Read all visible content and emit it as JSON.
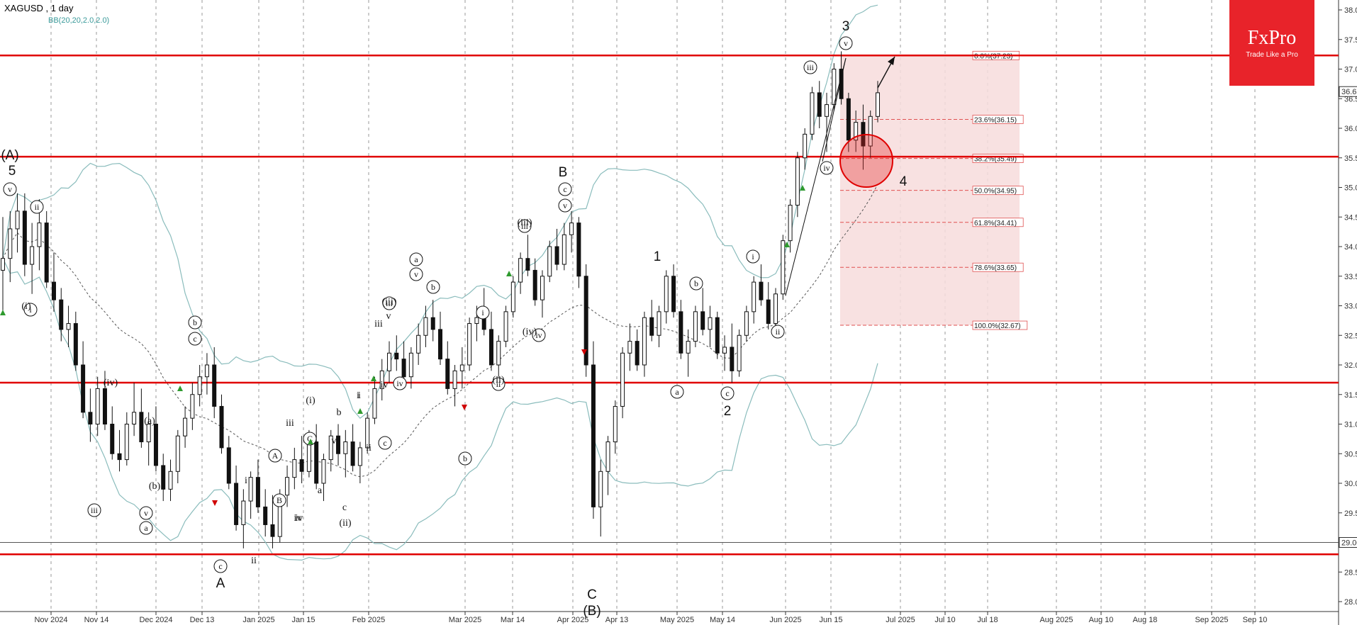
{
  "header": {
    "symbol": "XAGUSD , 1 day",
    "indicator": "BB(20,20,2.0,2.0)"
  },
  "logo": {
    "brand": "FxPro",
    "tagline": "Trade Like a Pro"
  },
  "colors": {
    "resistance": "#e00000",
    "fib_zone": "#f7dcdc",
    "band": "#8abcbc",
    "bull_arrow": "#2e9a2e",
    "bear_arrow": "#d00000"
  },
  "chart_data": {
    "type": "candlestick",
    "title": "XAGUSD , 1 day",
    "ylim": [
      27.8,
      38.1
    ],
    "y_ticks": [
      "38.00",
      "37.50",
      "37.00",
      "36.50",
      "36.00",
      "35.50",
      "35.00",
      "34.50",
      "34.00",
      "33.50",
      "33.00",
      "32.50",
      "32.00",
      "31.50",
      "31.00",
      "30.50",
      "30.00",
      "29.50",
      "29.00",
      "28.50",
      "28.00"
    ],
    "x_ticks": [
      "Nov 2024",
      "Nov 14",
      "Dec 2024",
      "Dec 13",
      "Jan 2025",
      "Jan 15",
      "Feb 2025",
      "Mar 2025",
      "Mar 14",
      "Apr 2025",
      "Apr 13",
      "May 2025",
      "May 14",
      "Jun 2025",
      "Jun 15",
      "Jul 2025",
      "Jul 10",
      "Jul 18",
      "Aug 2025",
      "Aug 10",
      "Aug 18",
      "Sep 2025",
      "Sep 10"
    ],
    "current_price": "36.62",
    "bottom_marker": "29.00",
    "horizontal_levels": [
      37.23,
      35.52,
      31.7,
      28.8
    ],
    "fib_levels": [
      {
        "label": "0.0%(37.23)",
        "price": 37.23
      },
      {
        "label": "23.6%(36.15)",
        "price": 36.15
      },
      {
        "label": "38.2%(35.49)",
        "price": 35.49
      },
      {
        "label": "50.0%(34.95)",
        "price": 34.95
      },
      {
        "label": "61.8%(34.41)",
        "price": 34.41
      },
      {
        "label": "78.6%(33.65)",
        "price": 33.65
      },
      {
        "label": "100.0%(32.67)",
        "price": 32.67
      }
    ],
    "candles": [
      [
        33.6,
        34.5,
        32.9,
        33.8
      ],
      [
        33.8,
        34.6,
        33.4,
        34.3
      ],
      [
        34.3,
        34.9,
        33.9,
        34.6
      ],
      [
        34.6,
        34.9,
        33.5,
        33.7
      ],
      [
        33.7,
        34.4,
        33.2,
        34.0
      ],
      [
        34.0,
        34.8,
        33.6,
        34.4
      ],
      [
        34.4,
        34.6,
        33.3,
        33.4
      ],
      [
        33.4,
        33.9,
        32.9,
        33.1
      ],
      [
        33.1,
        33.3,
        32.4,
        32.6
      ],
      [
        32.6,
        33.0,
        32.3,
        32.7
      ],
      [
        32.7,
        32.9,
        31.9,
        32.0
      ],
      [
        32.0,
        32.4,
        31.1,
        31.2
      ],
      [
        31.2,
        31.6,
        30.7,
        31.0
      ],
      [
        31.0,
        31.8,
        30.8,
        31.6
      ],
      [
        31.6,
        31.9,
        30.9,
        31.0
      ],
      [
        31.0,
        31.3,
        30.4,
        30.5
      ],
      [
        30.5,
        30.9,
        30.2,
        30.4
      ],
      [
        30.4,
        31.2,
        30.3,
        31.0
      ],
      [
        31.0,
        31.7,
        30.8,
        31.2
      ],
      [
        31.2,
        31.6,
        30.6,
        30.7
      ],
      [
        30.7,
        31.2,
        30.3,
        31.0
      ],
      [
        31.0,
        31.3,
        30.2,
        30.3
      ],
      [
        30.3,
        30.5,
        29.7,
        29.9
      ],
      [
        29.9,
        30.4,
        29.7,
        30.2
      ],
      [
        30.2,
        30.9,
        30.0,
        30.8
      ],
      [
        30.8,
        31.3,
        30.6,
        31.1
      ],
      [
        31.1,
        31.7,
        30.9,
        31.5
      ],
      [
        31.5,
        32.0,
        31.3,
        31.8
      ],
      [
        31.8,
        32.2,
        31.5,
        32.0
      ],
      [
        32.0,
        32.3,
        31.1,
        31.3
      ],
      [
        31.3,
        31.5,
        30.5,
        30.6
      ],
      [
        30.6,
        30.8,
        29.9,
        30.0
      ],
      [
        30.0,
        30.3,
        29.2,
        29.3
      ],
      [
        29.3,
        29.9,
        28.9,
        29.7
      ],
      [
        29.7,
        30.2,
        29.4,
        30.1
      ],
      [
        30.1,
        30.4,
        29.5,
        29.6
      ],
      [
        29.6,
        29.9,
        29.1,
        29.3
      ],
      [
        29.3,
        29.8,
        28.9,
        29.1
      ],
      [
        29.1,
        29.9,
        29.0,
        29.8
      ],
      [
        29.8,
        30.3,
        29.6,
        30.1
      ],
      [
        30.1,
        30.6,
        29.9,
        30.4
      ],
      [
        30.4,
        30.8,
        30.0,
        30.2
      ],
      [
        30.2,
        30.9,
        30.1,
        30.7
      ],
      [
        30.7,
        31.0,
        29.9,
        30.0
      ],
      [
        30.0,
        30.5,
        29.7,
        30.4
      ],
      [
        30.4,
        30.9,
        30.2,
        30.8
      ],
      [
        30.8,
        31.0,
        30.3,
        30.5
      ],
      [
        30.5,
        30.9,
        30.1,
        30.7
      ],
      [
        30.7,
        31.0,
        30.2,
        30.3
      ],
      [
        30.3,
        30.7,
        30.0,
        30.6
      ],
      [
        30.6,
        31.2,
        30.5,
        31.1
      ],
      [
        31.1,
        31.8,
        31.0,
        31.6
      ],
      [
        31.6,
        32.1,
        31.4,
        31.9
      ],
      [
        31.9,
        32.4,
        31.7,
        32.2
      ],
      [
        32.2,
        32.5,
        31.9,
        32.1
      ],
      [
        32.1,
        32.4,
        31.7,
        31.8
      ],
      [
        31.8,
        32.3,
        31.6,
        32.2
      ],
      [
        32.2,
        32.7,
        32.0,
        32.5
      ],
      [
        32.5,
        33.0,
        32.3,
        32.8
      ],
      [
        32.8,
        33.1,
        32.4,
        32.6
      ],
      [
        32.6,
        32.9,
        32.0,
        32.1
      ],
      [
        32.1,
        32.4,
        31.5,
        31.6
      ],
      [
        31.6,
        32.0,
        31.3,
        31.9
      ],
      [
        31.9,
        32.3,
        31.6,
        32.0
      ],
      [
        32.0,
        32.8,
        31.9,
        32.7
      ],
      [
        32.7,
        33.0,
        32.4,
        32.8
      ],
      [
        32.8,
        33.3,
        32.5,
        32.6
      ],
      [
        32.6,
        32.9,
        31.9,
        32.0
      ],
      [
        32.0,
        32.5,
        31.8,
        32.4
      ],
      [
        32.4,
        33.0,
        32.3,
        32.9
      ],
      [
        32.9,
        33.5,
        32.8,
        33.4
      ],
      [
        33.4,
        33.9,
        33.2,
        33.8
      ],
      [
        33.8,
        34.2,
        33.5,
        33.6
      ],
      [
        33.6,
        33.8,
        33.0,
        33.1
      ],
      [
        33.1,
        33.6,
        32.8,
        33.5
      ],
      [
        33.5,
        34.1,
        33.4,
        34.0
      ],
      [
        34.0,
        34.3,
        33.6,
        33.7
      ],
      [
        33.7,
        34.4,
        33.6,
        34.2
      ],
      [
        34.2,
        34.6,
        33.9,
        34.4
      ],
      [
        34.4,
        34.5,
        33.3,
        33.5
      ],
      [
        33.5,
        33.7,
        31.8,
        32.0
      ],
      [
        32.0,
        32.4,
        29.4,
        29.6
      ],
      [
        29.6,
        30.4,
        29.1,
        30.2
      ],
      [
        30.2,
        30.8,
        29.8,
        30.7
      ],
      [
        30.7,
        31.4,
        30.5,
        31.3
      ],
      [
        31.3,
        32.3,
        31.1,
        32.2
      ],
      [
        32.2,
        32.7,
        31.9,
        32.4
      ],
      [
        32.4,
        32.6,
        31.9,
        32.0
      ],
      [
        32.0,
        32.9,
        31.8,
        32.8
      ],
      [
        32.8,
        33.1,
        32.4,
        32.5
      ],
      [
        32.5,
        33.0,
        32.3,
        32.9
      ],
      [
        32.9,
        33.6,
        32.7,
        33.5
      ],
      [
        33.5,
        33.7,
        32.8,
        32.9
      ],
      [
        32.9,
        33.1,
        32.1,
        32.2
      ],
      [
        32.2,
        32.6,
        31.8,
        32.4
      ],
      [
        32.4,
        33.0,
        32.3,
        32.9
      ],
      [
        32.9,
        33.3,
        32.5,
        32.6
      ],
      [
        32.6,
        33.0,
        32.3,
        32.8
      ],
      [
        32.8,
        32.9,
        32.1,
        32.2
      ],
      [
        32.2,
        32.5,
        31.9,
        32.3
      ],
      [
        32.3,
        32.7,
        31.7,
        31.9
      ],
      [
        31.9,
        32.6,
        31.8,
        32.5
      ],
      [
        32.5,
        33.0,
        32.4,
        32.9
      ],
      [
        32.9,
        33.5,
        32.7,
        33.4
      ],
      [
        33.4,
        33.7,
        33.0,
        33.1
      ],
      [
        33.1,
        33.4,
        32.6,
        32.7
      ],
      [
        32.7,
        33.3,
        32.6,
        33.2
      ],
      [
        33.2,
        34.2,
        33.1,
        34.1
      ],
      [
        34.1,
        34.8,
        33.9,
        34.7
      ],
      [
        34.7,
        35.6,
        34.5,
        35.5
      ],
      [
        35.5,
        36.0,
        35.3,
        35.9
      ],
      [
        35.9,
        36.7,
        35.8,
        36.6
      ],
      [
        36.6,
        36.8,
        36.0,
        36.2
      ],
      [
        36.2,
        36.6,
        35.6,
        36.4
      ],
      [
        36.4,
        37.1,
        36.3,
        37.0
      ],
      [
        37.0,
        37.3,
        36.4,
        36.5
      ],
      [
        36.5,
        36.6,
        35.6,
        35.8
      ],
      [
        35.8,
        36.3,
        35.6,
        36.1
      ],
      [
        36.1,
        36.4,
        35.3,
        35.7
      ],
      [
        35.7,
        36.3,
        35.5,
        36.2
      ],
      [
        36.2,
        36.8,
        36.1,
        36.6
      ]
    ]
  }
}
